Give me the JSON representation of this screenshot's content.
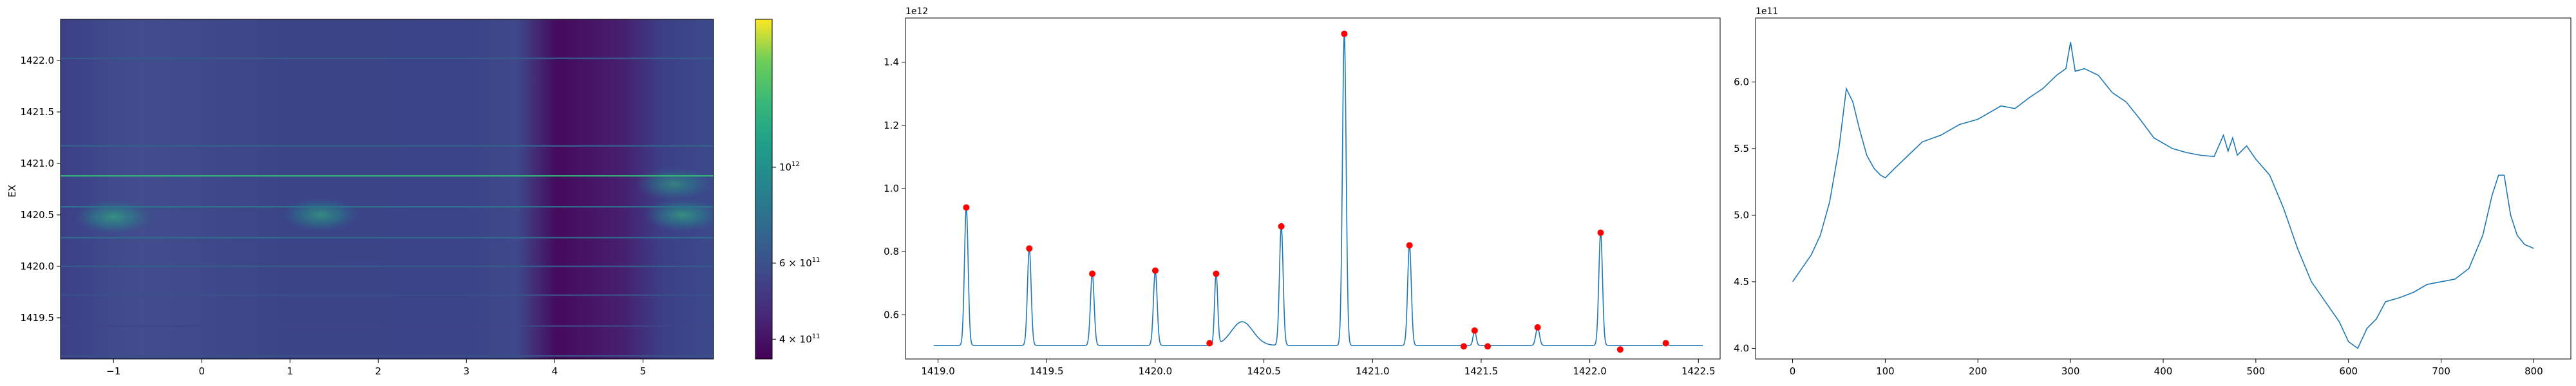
{
  "colors": {
    "line": "#1f77b4",
    "marker": "#ff0000",
    "axis": "#000000",
    "viridis_low": "#440154",
    "viridis_high": "#fde725"
  },
  "chart_data": [
    {
      "type": "heatmap",
      "ylabel": "EX",
      "xlabel": "",
      "title": "",
      "xlim": [
        -1.6,
        5.8
      ],
      "ylim": [
        1419.1,
        1422.4
      ],
      "x_ticks": [
        -1,
        0,
        1,
        2,
        3,
        4,
        5
      ],
      "x_tick_labels": [
        "−1",
        "0",
        "1",
        "2",
        "3",
        "4",
        "5"
      ],
      "y_ticks": [
        1419.5,
        1420.0,
        1420.5,
        1421.0,
        1421.5,
        1422.0
      ],
      "y_tick_labels": [
        "1419.5",
        "1420.0",
        "1420.5",
        "1421.0",
        "1421.5",
        "1422.0"
      ],
      "horizontal_lines": [
        {
          "y": 1422.02,
          "value": 650000000000.0
        },
        {
          "y": 1421.17,
          "value": 680000000000.0
        },
        {
          "y": 1420.88,
          "value": 1400000000000.0
        },
        {
          "y": 1420.58,
          "value": 800000000000.0
        },
        {
          "y": 1420.28,
          "value": 750000000000.0
        },
        {
          "y": 1420.0,
          "value": 650000000000.0
        },
        {
          "y": 1419.72,
          "value": 600000000000.0
        },
        {
          "y": 1419.42,
          "value": 550000000000.0
        },
        {
          "y": 1419.13,
          "value": 600000000000.0
        }
      ],
      "blobs": [
        {
          "x": -1.0,
          "y": 1420.48,
          "value": 850000000000.0
        },
        {
          "x": 1.35,
          "y": 1420.5,
          "value": 800000000000.0
        },
        {
          "x": 5.45,
          "y": 1420.5,
          "value": 850000000000.0
        },
        {
          "x": 5.35,
          "y": 1420.8,
          "value": 700000000000.0
        }
      ],
      "colorbar": {
        "scale": "log",
        "range": [
          360000000000.0,
          2200000000000.0
        ],
        "ticks": [
          {
            "value": 400000000000.0,
            "label_base": "4 × 10",
            "label_exp": "11"
          },
          {
            "value": 600000000000.0,
            "label_base": "6 × 10",
            "label_exp": "11"
          },
          {
            "value": 1000000000000.0,
            "label_base": "10",
            "label_exp": "12"
          }
        ]
      }
    },
    {
      "type": "line",
      "title": "",
      "xlabel": "",
      "ylabel": "",
      "y_offset_label": "1e12",
      "xlim": [
        1418.85,
        1422.6
      ],
      "ylim": [
        0.46,
        1.54
      ],
      "x_ticks": [
        1419.0,
        1419.5,
        1420.0,
        1420.5,
        1421.0,
        1421.5,
        1422.0,
        1422.5
      ],
      "x_tick_labels": [
        "1419.0",
        "1419.5",
        "1420.0",
        "1420.5",
        "1421.0",
        "1421.5",
        "1422.0",
        "1422.5"
      ],
      "y_ticks": [
        0.6,
        0.8,
        1.0,
        1.2,
        1.4
      ],
      "y_tick_labels": [
        "0.6",
        "0.8",
        "1.0",
        "1.2",
        "1.4"
      ],
      "x_range": [
        1418.98,
        1422.52
      ],
      "baseline": 0.503,
      "peaks": [
        {
          "x": 1419.13,
          "y": 0.94,
          "w": 0.012
        },
        {
          "x": 1419.42,
          "y": 0.81,
          "w": 0.012
        },
        {
          "x": 1419.71,
          "y": 0.73,
          "w": 0.012
        },
        {
          "x": 1420.0,
          "y": 0.74,
          "w": 0.012
        },
        {
          "x": 1420.28,
          "y": 0.73,
          "w": 0.01
        },
        {
          "x": 1420.58,
          "y": 0.88,
          "w": 0.012
        },
        {
          "x": 1420.87,
          "y": 1.49,
          "w": 0.012
        },
        {
          "x": 1421.17,
          "y": 0.82,
          "w": 0.012
        },
        {
          "x": 1421.47,
          "y": 0.55,
          "w": 0.01
        },
        {
          "x": 1421.76,
          "y": 0.56,
          "w": 0.012
        },
        {
          "x": 1422.05,
          "y": 0.86,
          "w": 0.012
        },
        {
          "x": 1422.35,
          "y": 0.51,
          "w": 0.01
        }
      ],
      "bumps": [
        {
          "x": 1420.4,
          "y": 0.075,
          "w": 0.07
        }
      ],
      "markers": [
        {
          "x": 1419.13,
          "y": 0.94
        },
        {
          "x": 1419.42,
          "y": 0.81
        },
        {
          "x": 1419.71,
          "y": 0.73
        },
        {
          "x": 1420.0,
          "y": 0.74
        },
        {
          "x": 1420.25,
          "y": 0.51
        },
        {
          "x": 1420.28,
          "y": 0.73
        },
        {
          "x": 1420.58,
          "y": 0.88
        },
        {
          "x": 1420.87,
          "y": 1.49
        },
        {
          "x": 1421.17,
          "y": 0.82
        },
        {
          "x": 1421.42,
          "y": 0.5
        },
        {
          "x": 1421.47,
          "y": 0.55
        },
        {
          "x": 1421.53,
          "y": 0.5
        },
        {
          "x": 1421.76,
          "y": 0.56
        },
        {
          "x": 1422.05,
          "y": 0.86
        },
        {
          "x": 1422.14,
          "y": 0.49
        },
        {
          "x": 1422.35,
          "y": 0.51
        }
      ]
    },
    {
      "type": "line",
      "title": "",
      "xlabel": "",
      "ylabel": "",
      "y_offset_label": "1e11",
      "xlim": [
        -40,
        840
      ],
      "ylim": [
        3.92,
        6.48
      ],
      "x_ticks": [
        0,
        100,
        200,
        300,
        400,
        500,
        600,
        700,
        800
      ],
      "x_tick_labels": [
        "0",
        "100",
        "200",
        "300",
        "400",
        "500",
        "600",
        "700",
        "800"
      ],
      "y_ticks": [
        4.0,
        4.5,
        5.0,
        5.5,
        6.0
      ],
      "y_tick_labels": [
        "4.0",
        "4.5",
        "5.0",
        "5.5",
        "6.0"
      ],
      "x": [
        0,
        10,
        20,
        30,
        40,
        50,
        58,
        65,
        72,
        80,
        88,
        95,
        100,
        110,
        125,
        140,
        160,
        180,
        200,
        215,
        225,
        240,
        255,
        270,
        285,
        295,
        300,
        305,
        315,
        330,
        345,
        360,
        375,
        390,
        410,
        425,
        440,
        455,
        465,
        470,
        475,
        480,
        490,
        500,
        515,
        530,
        545,
        560,
        575,
        590,
        600,
        610,
        620,
        630,
        640,
        655,
        670,
        685,
        700,
        715,
        730,
        745,
        755,
        762,
        768,
        775,
        782,
        790,
        800
      ],
      "values": [
        4.5,
        4.6,
        4.7,
        4.85,
        5.1,
        5.5,
        5.95,
        5.85,
        5.65,
        5.45,
        5.35,
        5.3,
        5.28,
        5.35,
        5.45,
        5.55,
        5.6,
        5.68,
        5.72,
        5.78,
        5.82,
        5.8,
        5.88,
        5.95,
        6.05,
        6.1,
        6.3,
        6.08,
        6.1,
        6.05,
        5.92,
        5.85,
        5.72,
        5.58,
        5.5,
        5.47,
        5.45,
        5.44,
        5.6,
        5.48,
        5.58,
        5.45,
        5.52,
        5.42,
        5.3,
        5.05,
        4.75,
        4.5,
        4.35,
        4.2,
        4.05,
        4.0,
        4.15,
        4.22,
        4.35,
        4.38,
        4.42,
        4.48,
        4.5,
        4.52,
        4.6,
        4.85,
        5.15,
        5.3,
        5.3,
        5.0,
        4.85,
        4.78,
        4.75
      ]
    }
  ]
}
